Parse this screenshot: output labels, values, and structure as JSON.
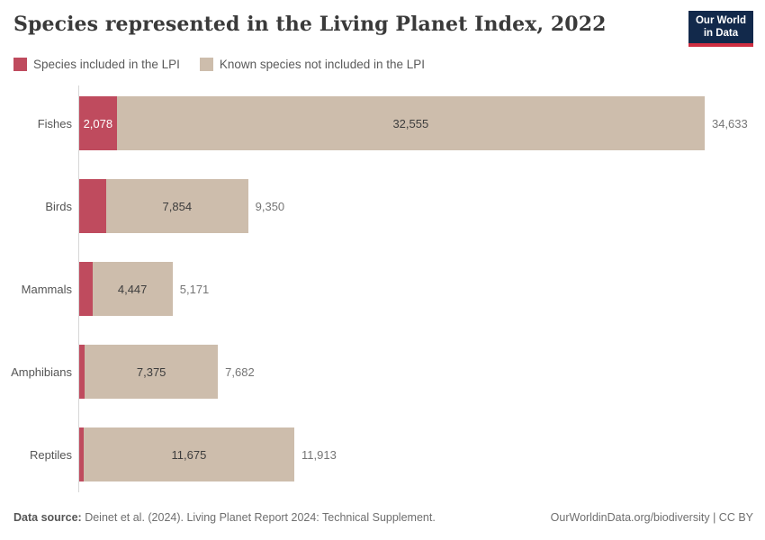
{
  "header": {
    "title": "Species represented in the Living Planet Index, 2022"
  },
  "logo": {
    "line1": "Our World",
    "line2": "in Data",
    "bg_color": "#12294b",
    "accent_color": "#cf2e41"
  },
  "colors": {
    "included": "#bf4b5e",
    "not_included": "#cdbdac",
    "axis": "#d7d7d7"
  },
  "chart_data": {
    "type": "bar",
    "orientation": "horizontal",
    "title": "Species represented in the Living Planet Index, 2022",
    "categories": [
      "Fishes",
      "Birds",
      "Mammals",
      "Amphibians",
      "Reptiles"
    ],
    "series": [
      {
        "name": "Species included in the LPI",
        "color": "#bf4b5e",
        "values": [
          2078,
          1496,
          724,
          307,
          238
        ]
      },
      {
        "name": "Known species not included in the LPI",
        "color": "#cdbdac",
        "values": [
          32555,
          7854,
          4447,
          7375,
          11675
        ]
      }
    ],
    "totals": [
      34633,
      9350,
      5171,
      7682,
      11913
    ],
    "labels": {
      "included": [
        "2,078",
        "",
        "",
        "",
        ""
      ],
      "not_included": [
        "32,555",
        "7,854",
        "4,447",
        "7,375",
        "11,675"
      ],
      "totals": [
        "34,633",
        "9,350",
        "5,171",
        "7,682",
        "11,913"
      ]
    },
    "xlim": [
      0,
      34633
    ],
    "grid": false,
    "legend_position": "top-left"
  },
  "footer": {
    "source_label": "Data source:",
    "source_text": " Deinet et al. (2024). Living Planet Report 2024: Technical Supplement.",
    "url": "OurWorldinData.org/biodiversity",
    "license": " | CC BY"
  }
}
